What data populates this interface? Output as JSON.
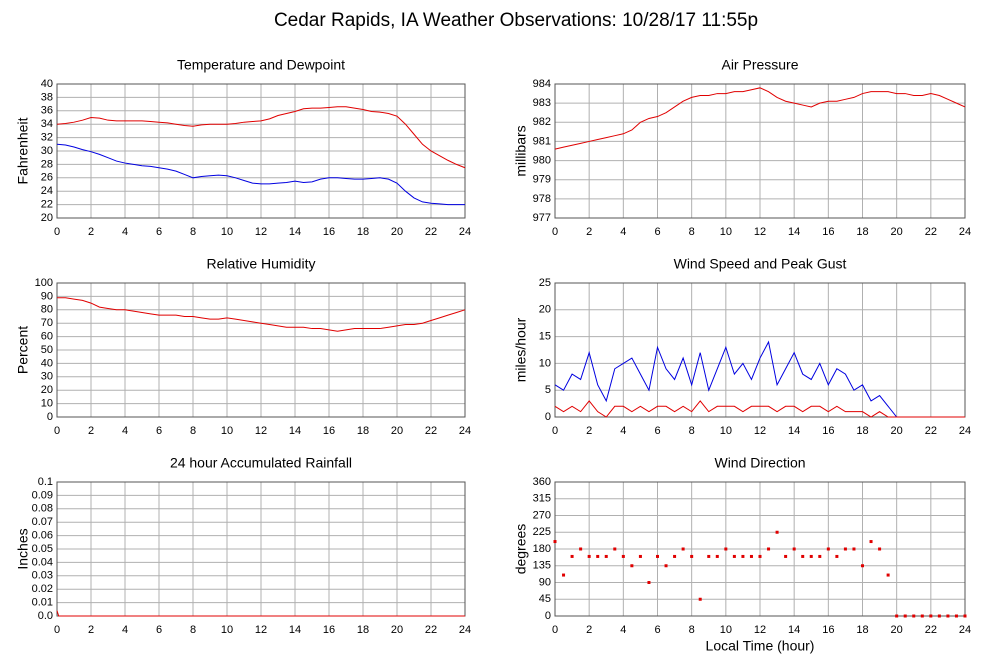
{
  "title": "Cedar Rapids, IA Weather Observations: 10/28/17 11:55p",
  "chart_data": [
    {
      "type": "line",
      "title": "Temperature and Dewpoint",
      "ylabel": "Fahrenheit",
      "x": [
        0,
        0.5,
        1,
        1.5,
        2,
        2.5,
        3,
        3.5,
        4,
        4.5,
        5,
        5.5,
        6,
        6.5,
        7,
        7.5,
        8,
        8.5,
        9,
        9.5,
        10,
        10.5,
        11,
        11.5,
        12,
        12.5,
        13,
        13.5,
        14,
        14.5,
        15,
        15.5,
        16,
        16.5,
        17,
        17.5,
        18,
        18.5,
        19,
        19.5,
        20,
        20.5,
        21,
        21.5,
        22,
        22.5,
        23,
        23.5,
        24
      ],
      "series": [
        {
          "color": "#e00000",
          "values": [
            34.0,
            34.1,
            34.3,
            34.6,
            35.0,
            34.9,
            34.6,
            34.5,
            34.5,
            34.5,
            34.5,
            34.4,
            34.3,
            34.2,
            34.0,
            33.8,
            33.7,
            33.9,
            34.0,
            34.0,
            34.0,
            34.1,
            34.3,
            34.4,
            34.5,
            34.8,
            35.3,
            35.6,
            35.9,
            36.3,
            36.4,
            36.4,
            36.5,
            36.6,
            36.6,
            36.4,
            36.2,
            35.9,
            35.8,
            35.6,
            35.2,
            34.0,
            32.5,
            31.0,
            30.0,
            29.3,
            28.6,
            28.0,
            27.5
          ]
        },
        {
          "color": "#0000e0",
          "values": [
            31.0,
            30.9,
            30.6,
            30.2,
            29.9,
            29.5,
            29.0,
            28.5,
            28.2,
            28.0,
            27.8,
            27.7,
            27.5,
            27.3,
            27.0,
            26.5,
            26.0,
            26.2,
            26.3,
            26.4,
            26.3,
            26.0,
            25.6,
            25.2,
            25.1,
            25.1,
            25.2,
            25.3,
            25.5,
            25.3,
            25.4,
            25.8,
            26.0,
            26.0,
            25.9,
            25.8,
            25.8,
            25.9,
            26.0,
            25.8,
            25.2,
            24.0,
            23.0,
            22.4,
            22.2,
            22.1,
            22.0,
            22.0,
            22.0
          ]
        }
      ],
      "xlim": [
        0,
        24
      ],
      "xticks": [
        0,
        2,
        4,
        6,
        8,
        10,
        12,
        14,
        16,
        18,
        20,
        22,
        24
      ],
      "ylim": [
        20,
        40
      ],
      "yticks": [
        20,
        22,
        24,
        26,
        28,
        30,
        32,
        34,
        36,
        38,
        40
      ],
      "grid": true
    },
    {
      "type": "line",
      "title": "Air Pressure",
      "ylabel": "millibars",
      "x": [
        0,
        0.5,
        1,
        1.5,
        2,
        2.5,
        3,
        3.5,
        4,
        4.5,
        5,
        5.5,
        6,
        6.5,
        7,
        7.5,
        8,
        8.5,
        9,
        9.5,
        10,
        10.5,
        11,
        11.5,
        12,
        12.5,
        13,
        13.5,
        14,
        14.5,
        15,
        15.5,
        16,
        16.5,
        17,
        17.5,
        18,
        18.5,
        19,
        19.5,
        20,
        20.5,
        21,
        21.5,
        22,
        22.5,
        23,
        23.5,
        24
      ],
      "series": [
        {
          "color": "#e00000",
          "values": [
            980.6,
            980.7,
            980.8,
            980.9,
            981.0,
            981.1,
            981.2,
            981.3,
            981.4,
            981.6,
            982.0,
            982.2,
            982.3,
            982.5,
            982.8,
            983.1,
            983.3,
            983.4,
            983.4,
            983.5,
            983.5,
            983.6,
            983.6,
            983.7,
            983.8,
            983.6,
            983.3,
            983.1,
            983.0,
            982.9,
            982.8,
            983.0,
            983.1,
            983.1,
            983.2,
            983.3,
            983.5,
            983.6,
            983.6,
            983.6,
            983.5,
            983.5,
            983.4,
            983.4,
            983.5,
            983.4,
            983.2,
            983.0,
            982.8
          ]
        }
      ],
      "xlim": [
        0,
        24
      ],
      "xticks": [
        0,
        2,
        4,
        6,
        8,
        10,
        12,
        14,
        16,
        18,
        20,
        22,
        24
      ],
      "ylim": [
        977,
        984
      ],
      "yticks": [
        977,
        978,
        979,
        980,
        981,
        982,
        983,
        984
      ],
      "grid": true
    },
    {
      "type": "line",
      "title": "Relative Humidity",
      "ylabel": "Percent",
      "x": [
        0,
        0.5,
        1,
        1.5,
        2,
        2.5,
        3,
        3.5,
        4,
        4.5,
        5,
        5.5,
        6,
        6.5,
        7,
        7.5,
        8,
        8.5,
        9,
        9.5,
        10,
        10.5,
        11,
        11.5,
        12,
        12.5,
        13,
        13.5,
        14,
        14.5,
        15,
        15.5,
        16,
        16.5,
        17,
        17.5,
        18,
        18.5,
        19,
        19.5,
        20,
        20.5,
        21,
        21.5,
        22,
        22.5,
        23,
        23.5,
        24
      ],
      "series": [
        {
          "color": "#e00000",
          "values": [
            89,
            89,
            88,
            87,
            85,
            82,
            81,
            80,
            80,
            79,
            78,
            77,
            76,
            76,
            76,
            75,
            75,
            74,
            73,
            73,
            74,
            73,
            72,
            71,
            70,
            69,
            68,
            67,
            67,
            67,
            66,
            66,
            65,
            64,
            65,
            66,
            66,
            66,
            66,
            67,
            68,
            69,
            69,
            70,
            72,
            74,
            76,
            78,
            80
          ]
        }
      ],
      "xlim": [
        0,
        24
      ],
      "xticks": [
        0,
        2,
        4,
        6,
        8,
        10,
        12,
        14,
        16,
        18,
        20,
        22,
        24
      ],
      "ylim": [
        0,
        100
      ],
      "yticks": [
        0,
        10,
        20,
        30,
        40,
        50,
        60,
        70,
        80,
        90,
        100
      ],
      "grid": true
    },
    {
      "type": "line",
      "title": "Wind Speed and Peak Gust",
      "ylabel": "miles/hour",
      "x": [
        0,
        0.5,
        1,
        1.5,
        2,
        2.5,
        3,
        3.5,
        4,
        4.5,
        5,
        5.5,
        6,
        6.5,
        7,
        7.5,
        8,
        8.5,
        9,
        9.5,
        10,
        10.5,
        11,
        11.5,
        12,
        12.5,
        13,
        13.5,
        14,
        14.5,
        15,
        15.5,
        16,
        16.5,
        17,
        17.5,
        18,
        18.5,
        19,
        19.5,
        20,
        20.5,
        21,
        21.5,
        22,
        22.5,
        23,
        23.5,
        24
      ],
      "series": [
        {
          "color": "#0000e0",
          "values": [
            6,
            5,
            8,
            7,
            12,
            6,
            3,
            9,
            10,
            11,
            8,
            5,
            13,
            9,
            7,
            11,
            6,
            12,
            5,
            9,
            13,
            8,
            10,
            7,
            11,
            14,
            6,
            9,
            12,
            8,
            7,
            10,
            6,
            9,
            8,
            5,
            6,
            3,
            4,
            2,
            0,
            0,
            0,
            0,
            0,
            0,
            0,
            0,
            0
          ]
        },
        {
          "color": "#e00000",
          "values": [
            2,
            1,
            2,
            1,
            3,
            1,
            0,
            2,
            2,
            1,
            2,
            1,
            2,
            2,
            1,
            2,
            1,
            3,
            1,
            2,
            2,
            2,
            1,
            2,
            2,
            2,
            1,
            2,
            2,
            1,
            2,
            2,
            1,
            2,
            1,
            1,
            1,
            0,
            1,
            0,
            0,
            0,
            0,
            0,
            0,
            0,
            0,
            0,
            0
          ]
        }
      ],
      "xlim": [
        0,
        24
      ],
      "xticks": [
        0,
        2,
        4,
        6,
        8,
        10,
        12,
        14,
        16,
        18,
        20,
        22,
        24
      ],
      "ylim": [
        0,
        25
      ],
      "yticks": [
        0,
        5,
        10,
        15,
        20,
        25
      ],
      "grid": true
    },
    {
      "type": "line",
      "title": "24 hour Accumulated Rainfall",
      "ylabel": "Inches",
      "x": [
        0,
        0.1,
        24
      ],
      "series": [
        {
          "color": "#e00000",
          "values": [
            0.004,
            0,
            0
          ]
        }
      ],
      "xlim": [
        0,
        24
      ],
      "xticks": [
        0,
        2,
        4,
        6,
        8,
        10,
        12,
        14,
        16,
        18,
        20,
        22,
        24
      ],
      "ylim": [
        0,
        0.1
      ],
      "yticks": [
        {
          "value": 0,
          "label": "0.0"
        },
        0.01,
        0.02,
        0.03,
        0.04,
        0.05,
        0.06,
        0.07,
        0.08,
        0.09,
        0.1
      ],
      "grid": true
    },
    {
      "type": "scatter",
      "title": "Wind Direction",
      "ylabel": "degrees",
      "xlabel": "Local Time (hour)",
      "x": [
        0,
        0.5,
        1,
        1.5,
        2,
        2.5,
        3,
        3.5,
        4,
        4.5,
        5,
        5.5,
        6,
        6.5,
        7,
        7.5,
        8,
        8.5,
        9,
        9.5,
        10,
        10.5,
        11,
        11.5,
        12,
        12.5,
        13,
        13.5,
        14,
        14.5,
        15,
        15.5,
        16,
        16.5,
        17,
        17.5,
        18,
        18.5,
        19,
        19.5,
        20,
        20.5,
        21,
        21.5,
        22,
        22.5,
        23,
        23.5,
        24
      ],
      "series": [
        {
          "color": "#e00000",
          "values": [
            200,
            110,
            160,
            180,
            160,
            160,
            160,
            180,
            160,
            135,
            160,
            90,
            160,
            135,
            160,
            180,
            160,
            45,
            160,
            160,
            180,
            160,
            160,
            160,
            160,
            180,
            225,
            160,
            180,
            160,
            160,
            160,
            180,
            160,
            180,
            180,
            135,
            200,
            180,
            110,
            0,
            0,
            0,
            0,
            0,
            0,
            0,
            0,
            0
          ]
        }
      ],
      "xlim": [
        0,
        24
      ],
      "xticks": [
        0,
        2,
        4,
        6,
        8,
        10,
        12,
        14,
        16,
        18,
        20,
        22,
        24
      ],
      "ylim": [
        0,
        360
      ],
      "yticks": [
        0,
        45,
        90,
        135,
        180,
        225,
        270,
        315,
        360
      ],
      "grid": true
    }
  ]
}
